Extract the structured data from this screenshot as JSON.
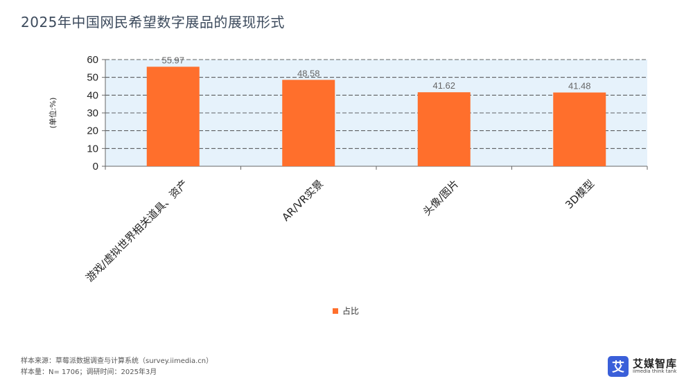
{
  "page": {
    "title": "2025年中国网民希望数字展品的展现形式",
    "footer_source": "样本来源：草莓派数据调查与计算系统（survey.iimedia.cn）",
    "footer_sample": "样本量：N= 1706；调研时间：2025年3月"
  },
  "logo": {
    "mark": "艾",
    "name": "艾媒智库",
    "sub": "iimedia think tank",
    "color": "#3a5fd9"
  },
  "chart_data": {
    "type": "bar",
    "categories": [
      "游戏/虚拟世界相关道具、资产",
      "AR/VR实景",
      "头像/图片",
      "3D模型"
    ],
    "series": [
      {
        "name": "占比",
        "values": [
          55.97,
          48.58,
          41.62,
          41.48
        ],
        "color": "#ff6f2c"
      }
    ],
    "ylabel": "(单位:%)",
    "ylim": [
      0,
      60
    ],
    "yticks": [
      0,
      10,
      20,
      30,
      40,
      50,
      60
    ],
    "grid": true,
    "plot_background": "#e6f2fb",
    "legend_position": "bottom-center"
  }
}
